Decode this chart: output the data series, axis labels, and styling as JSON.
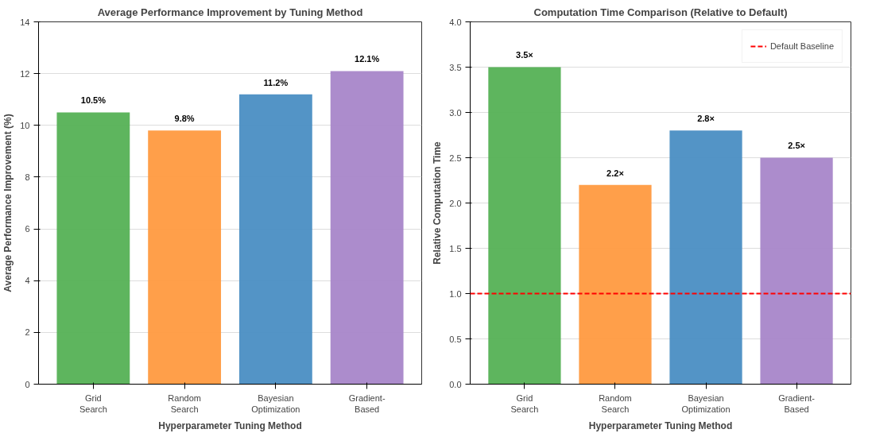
{
  "chart_data": [
    {
      "type": "bar",
      "title": "Average Performance Improvement by Tuning Method",
      "xlabel": "Hyperparameter Tuning Method",
      "ylabel": "Average Performance Improvement (%)",
      "categories": [
        "Grid\nSearch",
        "Random\nSearch",
        "Bayesian\nOptimization",
        "Gradient-\nBased"
      ],
      "values": [
        10.5,
        9.8,
        11.2,
        12.1
      ],
      "colors": [
        "#55b155",
        "#ff9a40",
        "#4a8ec3",
        "#a886c9"
      ],
      "value_labels": [
        "10.5%",
        "9.8%",
        "11.2%",
        "12.1%"
      ],
      "ylim": [
        0,
        14
      ],
      "yticks": [
        0,
        2,
        4,
        6,
        8,
        10,
        12,
        14
      ],
      "grid": "y"
    },
    {
      "type": "bar",
      "title": "Computation Time Comparison (Relative to Default)",
      "xlabel": "Hyperparameter Tuning Method",
      "ylabel": "Relative Computation Time",
      "categories": [
        "Grid\nSearch",
        "Random\nSearch",
        "Bayesian\nOptimization",
        "Gradient-\nBased"
      ],
      "values": [
        3.5,
        2.2,
        2.8,
        2.5
      ],
      "colors": [
        "#55b155",
        "#ff9a40",
        "#4a8ec3",
        "#a886c9"
      ],
      "value_labels": [
        "3.5×",
        "2.2×",
        "2.8×",
        "2.5×"
      ],
      "ylim": [
        0,
        4
      ],
      "yticks": [
        {
          "value": 0,
          "label": "0.0"
        },
        0.5,
        {
          "value": 1,
          "label": "1.0"
        },
        1.5,
        {
          "value": 2,
          "label": "2.0"
        },
        2.5,
        {
          "value": 3,
          "label": "3.0"
        },
        3.5,
        {
          "value": 4,
          "label": "4.0"
        }
      ],
      "grid": "y",
      "ref_lines": [
        {
          "axis": "y",
          "value": 1.0,
          "label": "Default Baseline",
          "color": "#ff0000",
          "line_style": "dashed"
        }
      ],
      "legend": "top right"
    }
  ]
}
